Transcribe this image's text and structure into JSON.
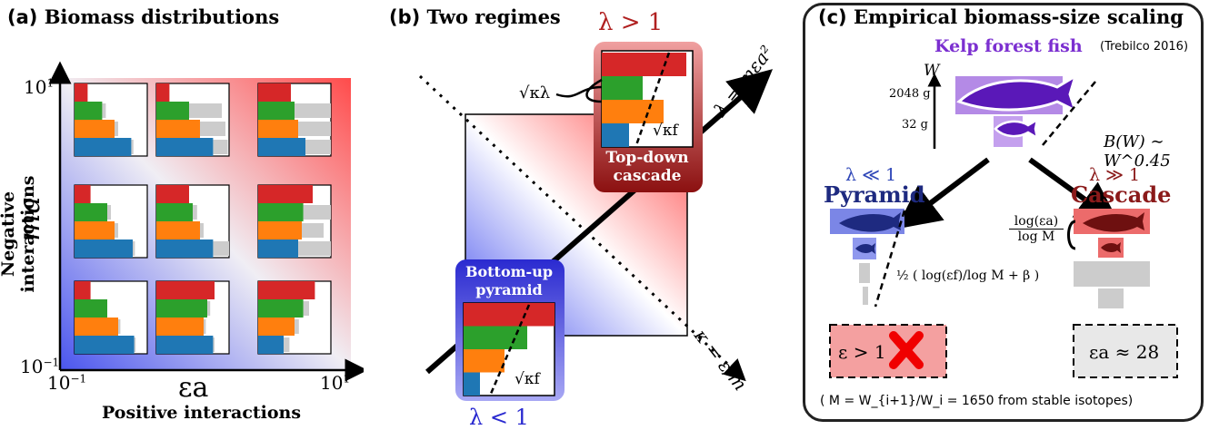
{
  "panel_a": {
    "title_letter": "(a)",
    "title_text": "Biomass distributions",
    "y_axis_label": "Negative interactions",
    "y_axis_var": "ma",
    "x_axis_label": "Positive interactions",
    "x_axis_var": "εa",
    "y_tick_top": "10",
    "y_tick_top_exp": "1",
    "y_tick_bottom": "10",
    "y_tick_bottom_exp": "−1",
    "x_tick_left": "10",
    "x_tick_left_exp": "−1",
    "x_tick_right": "10",
    "x_tick_right_exp": "1",
    "colors": {
      "red": "#d62728",
      "green": "#2ca02c",
      "orange": "#ff7f0e",
      "blue": "#1f77b4",
      "grey": "#cccccc"
    },
    "grid": [
      [
        [
          0.18,
          0.38,
          0.55,
          0.78
        ],
        [
          0.18,
          0.45,
          0.6,
          0.78
        ],
        [
          0.45,
          0.5,
          0.55,
          0.65
        ]
      ],
      [
        [
          0.22,
          0.45,
          0.55,
          0.8
        ],
        [
          0.45,
          0.5,
          0.6,
          0.78
        ],
        [
          0.75,
          0.62,
          0.6,
          0.55
        ]
      ],
      [
        [
          0.22,
          0.45,
          0.6,
          0.82
        ],
        [
          0.8,
          0.7,
          0.65,
          0.78
        ],
        [
          0.78,
          0.62,
          0.5,
          0.35
        ]
      ]
    ],
    "grey_grid": [
      [
        [
          0,
          0.05,
          0.05,
          0.03
        ],
        [
          0,
          0.45,
          0.35,
          0.2
        ],
        [
          0,
          0.8,
          0.6,
          0.9
        ]
      ],
      [
        [
          0,
          0.05,
          0.05,
          0.03
        ],
        [
          0,
          0.06,
          0.05,
          0.3
        ],
        [
          0,
          0.5,
          0.3,
          0.55
        ]
      ],
      [
        [
          0,
          0,
          0.03,
          0.02
        ],
        [
          0,
          0.04,
          0.03,
          0.02
        ],
        [
          0,
          0.08,
          0.06,
          0.08
        ]
      ]
    ]
  },
  "panel_b": {
    "title_letter": "(b)",
    "title_text": "Two regimes",
    "lambda_gt": "λ > 1",
    "lambda_lt": "λ < 1",
    "top_label_1": "Top-down",
    "top_label_2": "cascade",
    "bottom_label_1": "Bottom-up",
    "bottom_label_2": "pyramid",
    "sqrt_kl": "√κλ",
    "sqrt_kf": "√κf",
    "lambda_axis": "λ = mεa²",
    "kappa_axis": "κ = ε/m",
    "top_bars": [
      0.93,
      0.45,
      0.68,
      0.3
    ],
    "bottom_bars": [
      1.0,
      0.7,
      0.45,
      0.18
    ]
  },
  "panel_c": {
    "title_letter": "(c)",
    "title_text": "Empirical biomass-size scaling",
    "species": "Kelp forest fish",
    "citation": "(Trebilco 2016)",
    "w_label": "W",
    "w_high": "2048 g",
    "w_low": "32 g",
    "scaling": "B(W) ∼ W^0.45",
    "left_regime": "λ ≪ 1",
    "left_name": "Pyramid",
    "right_regime": "λ ≫ 1",
    "right_name": "Cascade",
    "left_formula": "½ ( log(εf)/log M + β )",
    "right_formula_num": "log(εa)",
    "right_formula_den": "log M",
    "left_box": "ε > 1",
    "right_box": "εa ≈ 28",
    "footnote": "( M = W_{i+1}/W_i = 1650 from stable isotopes)",
    "colors": {
      "purple": "#7b2fd0",
      "blue": "#2f47b8",
      "darkred": "#8b1a1a"
    }
  }
}
